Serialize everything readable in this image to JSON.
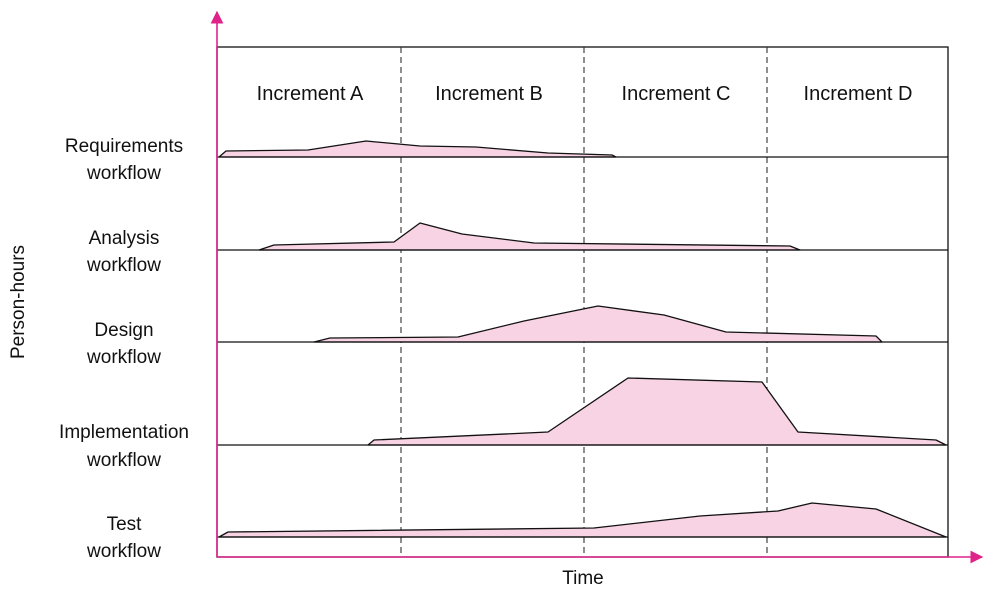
{
  "increments": [
    "Increment A",
    "Increment B",
    "Increment C",
    "Increment D"
  ],
  "workflows": [
    {
      "line1": "Requirements",
      "line2": "workflow"
    },
    {
      "line1": "Analysis",
      "line2": "workflow"
    },
    {
      "line1": "Design",
      "line2": "workflow"
    },
    {
      "line1": "Implementation",
      "line2": "workflow"
    },
    {
      "line1": "Test",
      "line2": "workflow"
    }
  ],
  "axes": {
    "x_label": "Time",
    "y_label": "Person-hours"
  },
  "colors": {
    "fill": "#f8d3e3",
    "axis": "#e0238a",
    "stroke": "#111111",
    "divider": "#333333"
  }
}
